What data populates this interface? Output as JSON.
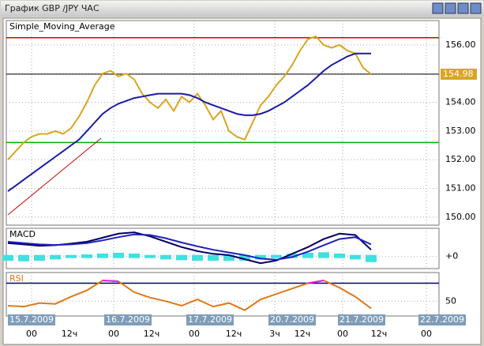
{
  "window": {
    "title": "График GBP /JPY  ЧАС"
  },
  "time_axis": {
    "dates": [
      "15.7.2009",
      "16.7.2009",
      "17.7.2009",
      "20.7.2009",
      "21.7.2009",
      "22.7.2009"
    ],
    "hours": [
      "00",
      "12ч",
      "00",
      "12ч",
      "00",
      "12ч",
      "3ч",
      "12ч",
      "00",
      "12ч",
      "00"
    ]
  },
  "chart_data": [
    {
      "type": "line",
      "title": "Simple_Moving_Average",
      "ylim": [
        149.72,
        156.85
      ],
      "yticks": [
        {
          "value": 150,
          "label": "150.00"
        },
        {
          "value": 151,
          "label": "151.00"
        },
        {
          "value": 152,
          "label": "152.00"
        },
        {
          "value": 153,
          "label": "153.00"
        },
        {
          "value": 154,
          "label": "154.00"
        },
        {
          "value": 155,
          "label": "155.00"
        },
        {
          "value": 156,
          "label": "156.00"
        }
      ],
      "grid": true,
      "current_price": 154.98,
      "levels": [
        {
          "value": 156.25,
          "color": "#e00000"
        },
        {
          "value": 152.6,
          "color": "#00b000"
        }
      ],
      "series": [
        {
          "color": "#daa520",
          "values": [
            152.0,
            152.3,
            152.6,
            152.8,
            152.9,
            152.9,
            153.0,
            152.9,
            153.1,
            153.5,
            154.0,
            154.6,
            155.0,
            155.1,
            154.9,
            155.0,
            154.8,
            154.3,
            154.0,
            153.8,
            154.1,
            153.7,
            154.2,
            154.0,
            154.3,
            153.9,
            153.4,
            153.7,
            153.0,
            152.8,
            152.7,
            153.3,
            153.9,
            154.2,
            154.6,
            154.9,
            155.3,
            155.8,
            156.2,
            156.3,
            156.0,
            155.9,
            156.0,
            155.8,
            155.7,
            155.2,
            154.98
          ]
        },
        {
          "color": "#1a1aa8",
          "values": [
            150.9,
            151.1,
            151.3,
            151.5,
            151.7,
            151.9,
            152.1,
            152.3,
            152.5,
            152.7,
            153.0,
            153.3,
            153.6,
            153.8,
            153.95,
            154.05,
            154.15,
            154.2,
            154.25,
            154.3,
            154.3,
            154.3,
            154.3,
            154.25,
            154.15,
            154.0,
            153.9,
            153.8,
            153.7,
            153.6,
            153.55,
            153.55,
            153.6,
            153.7,
            153.85,
            154.0,
            154.2,
            154.4,
            154.6,
            154.85,
            155.1,
            155.3,
            155.45,
            155.6,
            155.7,
            155.7,
            155.7
          ]
        }
      ]
    },
    {
      "type": "line",
      "title": "MACD",
      "ylim": [
        -0.45,
        1.05
      ],
      "yticks": [
        {
          "value": 0,
          "label": "+0"
        }
      ],
      "series": [
        {
          "type": "bar",
          "color": "#40e0e0",
          "values": [
            -0.1,
            -0.12,
            -0.1,
            -0.05,
            0,
            0.02,
            0.05,
            0.08,
            0.05,
            0,
            -0.05,
            -0.08,
            -0.1,
            -0.1,
            -0.1,
            -0.1,
            -0.05,
            0,
            0.05,
            0.08,
            0.1,
            0.05,
            -0.05,
            -0.15
          ]
        },
        {
          "color": "#000060",
          "values": [
            0.5,
            0.45,
            0.4,
            0.42,
            0.48,
            0.55,
            0.7,
            0.85,
            0.9,
            0.75,
            0.55,
            0.35,
            0.2,
            0.1,
            0.05,
            -0.1,
            -0.25,
            -0.15,
            0.1,
            0.35,
            0.65,
            0.85,
            0.8,
            0.25
          ]
        },
        {
          "color": "#2020c0",
          "values": [
            0.55,
            0.5,
            0.45,
            0.43,
            0.45,
            0.5,
            0.6,
            0.72,
            0.82,
            0.8,
            0.68,
            0.52,
            0.38,
            0.25,
            0.15,
            0.05,
            -0.08,
            -0.12,
            -0.02,
            0.18,
            0.42,
            0.65,
            0.72,
            0.45
          ]
        }
      ]
    },
    {
      "type": "line",
      "title": "RSI",
      "ylim": [
        33.6,
        81.8
      ],
      "yticks": [
        50
      ],
      "levels": [
        {
          "value": 70,
          "color": "#000080"
        }
      ],
      "series": [
        {
          "color": "#e07818",
          "highlight_color": "#e020e0",
          "values": [
            45,
            44,
            48,
            47,
            55,
            62,
            73,
            72,
            60,
            54,
            50,
            45,
            52,
            44,
            48,
            40,
            52,
            58,
            64,
            70,
            73,
            65,
            55,
            42
          ]
        }
      ]
    }
  ]
}
